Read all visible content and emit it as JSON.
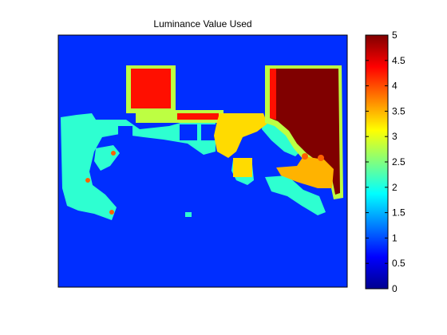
{
  "chart_data": [
    {
      "type": "heatmap",
      "title": "Luminance Value Used",
      "xlabel": "",
      "ylabel": "",
      "axis_ticks_visible": false,
      "background_value": 0.85,
      "regions": [
        {
          "name": "upper-left bright block",
          "value": 4.3
        },
        {
          "name": "upper-right dark-red block",
          "value": 5.0
        },
        {
          "name": "block outlines",
          "value": 2.8
        },
        {
          "name": "center shelf stripe",
          "value": 4.3
        },
        {
          "name": "left cyan region",
          "value": 2.1
        },
        {
          "name": "central yellow patches",
          "value": 3.3
        },
        {
          "name": "right yellow patch",
          "value": 3.5
        },
        {
          "name": "orange spots",
          "value": 3.9
        }
      ]
    },
    {
      "type": "colorbar",
      "colormap": "jet",
      "range": [
        0,
        5
      ],
      "tick_labels": [
        "0",
        "0.5",
        "1",
        "1.5",
        "2",
        "2.5",
        "3",
        "3.5",
        "4",
        "4.5",
        "5"
      ]
    }
  ],
  "colors": {
    "jet_stops": [
      "#00008f",
      "#0000ff",
      "#00ffff",
      "#ffff00",
      "#ff0000",
      "#800000"
    ]
  }
}
